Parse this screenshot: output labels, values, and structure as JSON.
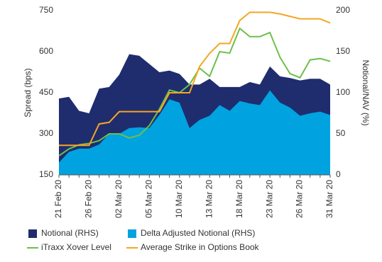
{
  "chart_data": {
    "type": "area-line",
    "categories": [
      "21 Feb 20",
      null,
      null,
      "26 Feb 20",
      null,
      null,
      "02 Mar 20",
      null,
      null,
      "05 Mar 20",
      null,
      null,
      "10 Mar 20",
      null,
      null,
      "13 Mar 20",
      null,
      null,
      "18 Mar 20",
      null,
      null,
      "23 Mar 20",
      null,
      null,
      "26 Mar 20",
      null,
      null,
      "31 Mar 20"
    ],
    "ylabel": "Spread (bps)",
    "y2label": "Notional/NAV (%)",
    "ylim": [
      150,
      750
    ],
    "yticks": [
      150,
      300,
      450,
      600,
      750
    ],
    "y2lim": [
      0,
      200
    ],
    "y2ticks": [
      0,
      50,
      100,
      150,
      200
    ],
    "series": [
      {
        "name": "Notional (RHS)",
        "kind": "area",
        "axis": "y2",
        "color": "#1f2d6e",
        "values": [
          93,
          95,
          78,
          75,
          105,
          107,
          122,
          147,
          145,
          135,
          125,
          127,
          123,
          110,
          110,
          117,
          107,
          107,
          107,
          113,
          110,
          132,
          120,
          118,
          115,
          117,
          117,
          110
        ]
      },
      {
        "name": "Delta Adjusted Notional (RHS)",
        "kind": "area",
        "axis": "y2",
        "color": "#00a3e0",
        "values": [
          15,
          28,
          32,
          32,
          37,
          50,
          50,
          57,
          58,
          57,
          73,
          92,
          88,
          57,
          67,
          72,
          85,
          78,
          90,
          87,
          85,
          103,
          88,
          82,
          72,
          75,
          77,
          73
        ]
      },
      {
        "name": "iTraxx Xover Level",
        "kind": "line",
        "axis": "y",
        "color": "#6cc04a",
        "values": [
          220,
          245,
          260,
          265,
          275,
          300,
          300,
          285,
          295,
          330,
          390,
          460,
          450,
          480,
          540,
          510,
          600,
          595,
          685,
          655,
          655,
          670,
          580,
          520,
          505,
          570,
          575,
          565
        ]
      },
      {
        "name": "Average Strike in Options Book",
        "kind": "line",
        "axis": "y2",
        "color": "#f5a623",
        "values": [
          36,
          36,
          36,
          36,
          62,
          64,
          77,
          77,
          77,
          77,
          77,
          100,
          100,
          100,
          132,
          148,
          160,
          160,
          188,
          198,
          198,
          198,
          196,
          193,
          190,
          190,
          190,
          185
        ]
      }
    ]
  }
}
